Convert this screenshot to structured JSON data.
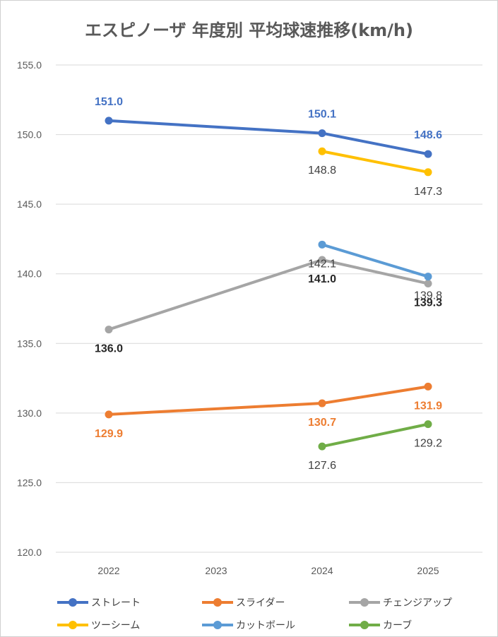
{
  "chart_data": {
    "type": "line",
    "title": "エスピノーザ 年度別 平均球速推移(km/h)",
    "categories": [
      "2022",
      "2023",
      "2024",
      "2025"
    ],
    "ylim": [
      120,
      155
    ],
    "yticks": [
      "120.0",
      "125.0",
      "130.0",
      "135.0",
      "140.0",
      "145.0",
      "150.0",
      "155.0"
    ],
    "grid": true,
    "legend_position": "bottom",
    "series": [
      {
        "name": "ストレート",
        "color": "#4472C4",
        "values": [
          151.0,
          null,
          150.1,
          148.6
        ],
        "labels": [
          "151.0",
          "",
          "150.1",
          "148.6"
        ],
        "label_color": "#4472C4",
        "label_bold": true,
        "label_pos": "above"
      },
      {
        "name": "スライダー",
        "color": "#ED7D31",
        "values": [
          129.9,
          null,
          130.7,
          131.9
        ],
        "labels": [
          "129.9",
          "",
          "130.7",
          "131.9"
        ],
        "label_color": "#ED7D31",
        "label_bold": true,
        "label_pos": "below"
      },
      {
        "name": "チェンジアップ",
        "color": "#A5A5A5",
        "values": [
          136.0,
          null,
          141.0,
          139.3
        ],
        "labels": [
          "136.0",
          "",
          "141.0",
          "139.3"
        ],
        "label_color": "#262626",
        "label_bold": true,
        "label_pos": "below"
      },
      {
        "name": "ツーシーム",
        "color": "#FFC000",
        "values": [
          null,
          null,
          148.8,
          147.3
        ],
        "labels": [
          "",
          "",
          "148.8",
          "147.3"
        ],
        "label_color": "#404040",
        "label_bold": false,
        "label_pos": "below"
      },
      {
        "name": "カットボール",
        "color": "#5B9BD5",
        "values": [
          null,
          null,
          142.1,
          139.8
        ],
        "labels": [
          "",
          "",
          "142.1",
          "139.8"
        ],
        "label_color": "#404040",
        "label_bold": false,
        "label_pos": "below"
      },
      {
        "name": "カーブ",
        "color": "#70AD47",
        "values": [
          null,
          null,
          127.6,
          129.2
        ],
        "labels": [
          "",
          "",
          "127.6",
          "129.2"
        ],
        "label_color": "#404040",
        "label_bold": false,
        "label_pos": "below"
      }
    ]
  }
}
